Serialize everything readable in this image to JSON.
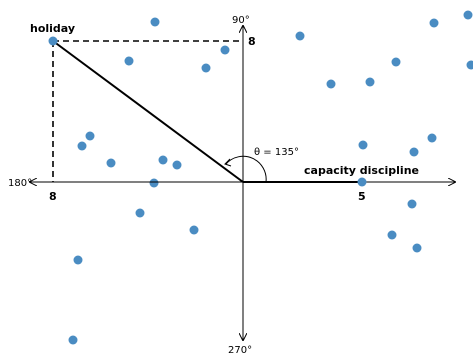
{
  "diagram": {
    "angle_label": "θ = 135°",
    "axis_labels": {
      "top": "90°",
      "left": "180°",
      "bottom": "270°"
    },
    "vector_a": {
      "label": "holiday",
      "x_tick": "8",
      "y_tick": "8"
    },
    "vector_b": {
      "label": "capacity discipline",
      "x_tick": "5"
    },
    "colors": {
      "points": "#4a8cc2",
      "lines": "#000000"
    }
  }
}
